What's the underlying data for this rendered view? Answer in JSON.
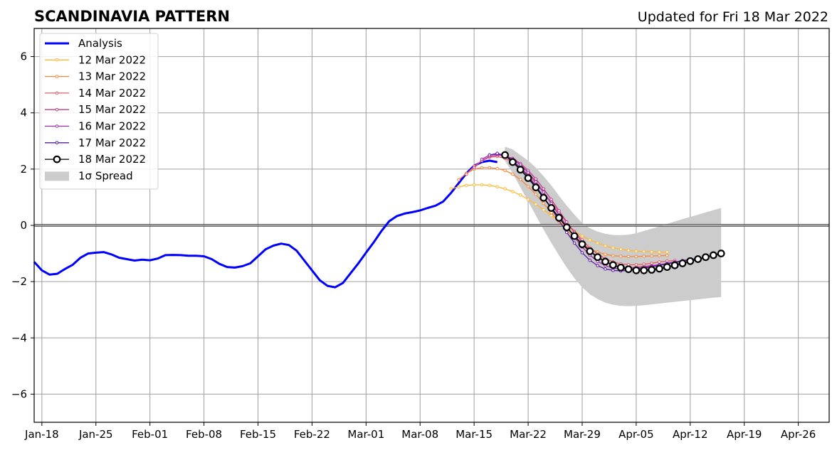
{
  "chart_data": {
    "type": "line",
    "title": "SCANDINAVIA PATTERN",
    "updated_text": "Updated for Fri 18 Mar 2022",
    "x_ticks": [
      "Jan-18",
      "Jan-25",
      "Feb-01",
      "Feb-08",
      "Feb-15",
      "Feb-22",
      "Mar-01",
      "Mar-08",
      "Mar-15",
      "Mar-22",
      "Mar-29",
      "Apr-05",
      "Apr-12",
      "Apr-19",
      "Apr-26"
    ],
    "y_ticks": [
      -6,
      -4,
      -2,
      0,
      2,
      4,
      6
    ],
    "y_tick_labels": [
      "−6",
      "−4",
      "−2",
      "0",
      "2",
      "4",
      "6"
    ],
    "xlim": [
      "2022-01-17",
      "2022-04-30"
    ],
    "ylim": [
      -7,
      7
    ],
    "grid": true,
    "legend_position": "top-left",
    "spread_label": "1σ Spread",
    "analysis": {
      "name": "Analysis",
      "color": "#0000ff",
      "x": [
        "2022-01-17",
        "2022-01-18",
        "2022-01-19",
        "2022-01-20",
        "2022-01-21",
        "2022-01-22",
        "2022-01-23",
        "2022-01-24",
        "2022-01-25",
        "2022-01-26",
        "2022-01-27",
        "2022-01-28",
        "2022-01-29",
        "2022-01-30",
        "2022-01-31",
        "2022-02-01",
        "2022-02-02",
        "2022-02-03",
        "2022-02-04",
        "2022-02-05",
        "2022-02-06",
        "2022-02-07",
        "2022-02-08",
        "2022-02-09",
        "2022-02-10",
        "2022-02-11",
        "2022-02-12",
        "2022-02-13",
        "2022-02-14",
        "2022-02-15",
        "2022-02-16",
        "2022-02-17",
        "2022-02-18",
        "2022-02-19",
        "2022-02-20",
        "2022-02-21",
        "2022-02-22",
        "2022-02-23",
        "2022-02-24",
        "2022-02-25",
        "2022-02-26",
        "2022-02-27",
        "2022-02-28",
        "2022-03-01",
        "2022-03-02",
        "2022-03-03",
        "2022-03-04",
        "2022-03-05",
        "2022-03-06",
        "2022-03-07",
        "2022-03-08",
        "2022-03-09",
        "2022-03-10",
        "2022-03-11",
        "2022-03-12",
        "2022-03-13",
        "2022-03-14",
        "2022-03-15",
        "2022-03-16",
        "2022-03-17",
        "2022-03-18"
      ],
      "y": [
        -1.3,
        -1.6,
        -1.75,
        -1.72,
        -1.55,
        -1.4,
        -1.15,
        -1.0,
        -0.97,
        -0.95,
        -1.03,
        -1.15,
        -1.2,
        -1.25,
        -1.22,
        -1.24,
        -1.18,
        -1.06,
        -1.05,
        -1.06,
        -1.08,
        -1.08,
        -1.1,
        -1.2,
        -1.37,
        -1.48,
        -1.5,
        -1.45,
        -1.35,
        -1.1,
        -0.85,
        -0.72,
        -0.65,
        -0.7,
        -0.9,
        -1.25,
        -1.6,
        -1.95,
        -2.15,
        -2.2,
        -2.05,
        -1.7,
        -1.35,
        -0.97,
        -0.6,
        -0.2,
        0.15,
        0.33,
        0.42,
        0.47,
        0.53,
        0.62,
        0.7,
        0.85,
        1.15,
        1.5,
        1.85,
        2.12,
        2.25,
        2.3,
        2.25
      ]
    },
    "series": [
      {
        "name": "12 Mar 2022",
        "color": "#ffb833",
        "start": "2022-03-12",
        "values": [
          1.3,
          1.37,
          1.42,
          1.44,
          1.44,
          1.42,
          1.37,
          1.3,
          1.2,
          1.08,
          0.92,
          0.75,
          0.55,
          0.35,
          0.15,
          -0.05,
          -0.22,
          -0.38,
          -0.52,
          -0.63,
          -0.73,
          -0.8,
          -0.85,
          -0.89,
          -0.92,
          -0.93,
          -0.94,
          -0.95,
          -0.95
        ]
      },
      {
        "name": "13 Mar 2022",
        "color": "#f5873e",
        "start": "2022-03-13",
        "values": [
          1.62,
          1.85,
          2.0,
          2.05,
          2.05,
          2.02,
          1.95,
          1.82,
          1.63,
          1.38,
          1.1,
          0.78,
          0.45,
          0.12,
          -0.18,
          -0.45,
          -0.66,
          -0.83,
          -0.95,
          -1.03,
          -1.08,
          -1.1,
          -1.11,
          -1.11,
          -1.1,
          -1.09,
          -1.08,
          -1.07
        ]
      },
      {
        "name": "14 Mar 2022",
        "color": "#e55c64",
        "start": "2022-03-14",
        "values": [
          1.82,
          2.1,
          2.3,
          2.42,
          2.45,
          2.38,
          2.25,
          2.05,
          1.8,
          1.5,
          1.17,
          0.82,
          0.45,
          0.1,
          -0.22,
          -0.52,
          -0.8,
          -1.02,
          -1.18,
          -1.3,
          -1.37,
          -1.4,
          -1.4,
          -1.38,
          -1.35,
          -1.3,
          -1.27,
          -1.25
        ]
      },
      {
        "name": "15 Mar 2022",
        "color": "#c23b8e",
        "start": "2022-03-15",
        "values": [
          2.05,
          2.3,
          2.45,
          2.5,
          2.47,
          2.38,
          2.2,
          1.95,
          1.65,
          1.3,
          0.92,
          0.52,
          0.12,
          -0.25,
          -0.6,
          -0.9,
          -1.12,
          -1.3,
          -1.42,
          -1.48,
          -1.5,
          -1.49,
          -1.46,
          -1.43,
          -1.4,
          -1.36,
          -1.32,
          -1.28
        ]
      },
      {
        "name": "16 Mar 2022",
        "color": "#9c2bb2",
        "start": "2022-03-16",
        "values": [
          2.35,
          2.5,
          2.53,
          2.48,
          2.35,
          2.15,
          1.88,
          1.55,
          1.18,
          0.78,
          0.37,
          -0.03,
          -0.42,
          -0.77,
          -1.06,
          -1.28,
          -1.43,
          -1.52,
          -1.55,
          -1.55,
          -1.53,
          -1.5,
          -1.45,
          -1.4,
          -1.35,
          -1.3,
          -1.25,
          -1.2
        ]
      },
      {
        "name": "17 Mar 2022",
        "color": "#5a1aa4",
        "start": "2022-03-17",
        "values": [
          2.5,
          2.56,
          2.48,
          2.3,
          2.05,
          1.75,
          1.4,
          1.02,
          0.6,
          0.17,
          -0.25,
          -0.63,
          -0.97,
          -1.24,
          -1.43,
          -1.55,
          -1.6,
          -1.62,
          -1.6,
          -1.57,
          -1.52,
          -1.47,
          -1.42,
          -1.37,
          -1.32,
          -1.27,
          -1.22,
          -1.17
        ]
      },
      {
        "name": "18 Mar 2022",
        "color": "#000000",
        "start": "2022-03-19",
        "values": [
          2.5,
          2.25,
          1.98,
          1.68,
          1.35,
          0.98,
          0.62,
          0.27,
          -0.07,
          -0.38,
          -0.67,
          -0.92,
          -1.13,
          -1.29,
          -1.41,
          -1.5,
          -1.56,
          -1.6,
          -1.6,
          -1.58,
          -1.54,
          -1.48,
          -1.42,
          -1.35,
          -1.27,
          -1.2,
          -1.13,
          -1.06,
          -1.0
        ]
      }
    ],
    "spread": {
      "start": "2022-03-19",
      "upper": [
        2.8,
        2.7,
        2.5,
        2.3,
        2.05,
        1.75,
        1.42,
        1.05,
        0.7,
        0.38,
        0.08,
        -0.1,
        -0.22,
        -0.3,
        -0.34,
        -0.35,
        -0.33,
        -0.28,
        -0.2,
        -0.12,
        -0.04,
        0.05,
        0.14,
        0.22,
        0.3,
        0.38,
        0.46,
        0.54,
        0.62
      ],
      "lower": [
        2.3,
        1.85,
        1.35,
        0.85,
        0.35,
        -0.15,
        -0.62,
        -1.07,
        -1.5,
        -1.88,
        -2.2,
        -2.45,
        -2.62,
        -2.75,
        -2.82,
        -2.86,
        -2.87,
        -2.86,
        -2.84,
        -2.81,
        -2.78,
        -2.75,
        -2.72,
        -2.69,
        -2.66,
        -2.63,
        -2.6,
        -2.57,
        -2.55
      ]
    }
  }
}
